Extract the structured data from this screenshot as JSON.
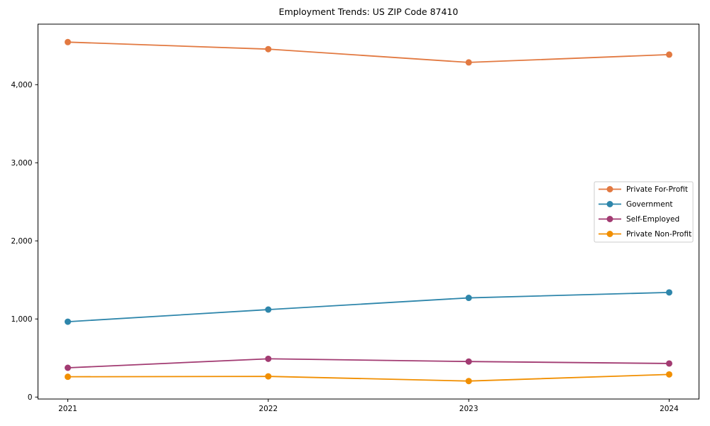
{
  "chart_data": {
    "type": "line",
    "title": "Employment Trends: US ZIP Code 87410",
    "categories": [
      "2021",
      "2022",
      "2023",
      "2024"
    ],
    "x": [
      2021,
      2022,
      2023,
      2024
    ],
    "series": [
      {
        "name": "Private For-Profit",
        "color": "#E27941",
        "values": [
          4545,
          4455,
          4285,
          4385
        ]
      },
      {
        "name": "Government",
        "color": "#2E86AB",
        "values": [
          965,
          1120,
          1270,
          1340
        ]
      },
      {
        "name": "Self-Employed",
        "color": "#A23B72",
        "values": [
          375,
          490,
          455,
          430
        ]
      },
      {
        "name": "Private Non-Profit",
        "color": "#F18F01",
        "values": [
          260,
          265,
          205,
          290
        ]
      }
    ],
    "yticks": [
      0,
      1000,
      2000,
      3000,
      4000
    ],
    "ytick_labels": [
      "0",
      "1,000",
      "2,000",
      "3,000",
      "4,000"
    ],
    "ylim": [
      -25,
      4775
    ],
    "xlabel": "",
    "ylabel": "",
    "grid": false,
    "legend_position": "center-right",
    "axis_color": "#000000",
    "legend_border_color": "#cccccc"
  }
}
